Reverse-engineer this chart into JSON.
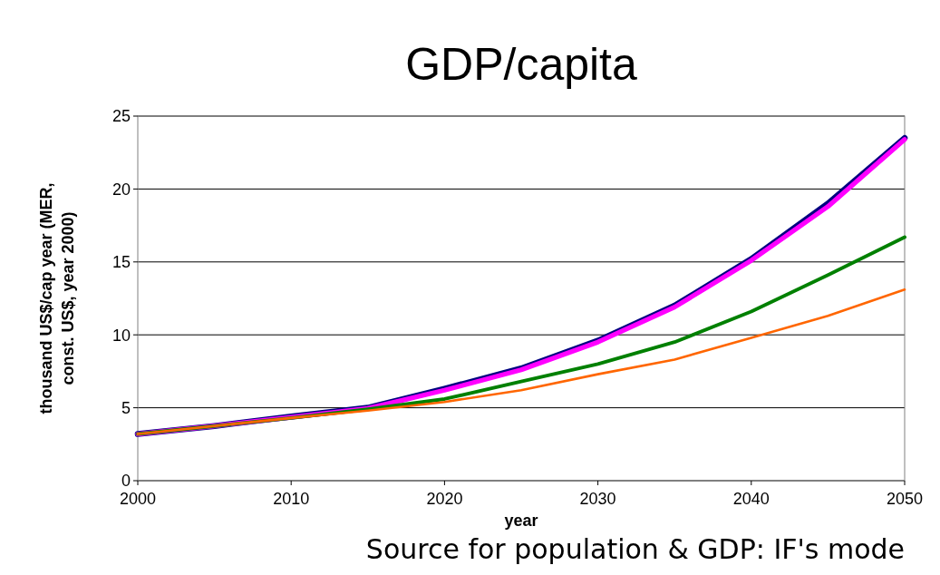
{
  "chart_data": {
    "type": "line",
    "title": "GDP/capita",
    "xlabel": "year",
    "ylabel": "thousand US$/cap year (MER, const. US$, year 2000)",
    "x": [
      2000,
      2005,
      2010,
      2015,
      2020,
      2025,
      2030,
      2035,
      2040,
      2045,
      2050
    ],
    "series": [
      {
        "color": "#000080",
        "values": [
          3.2,
          3.75,
          4.4,
          5.0,
          6.3,
          7.7,
          9.6,
          12.0,
          15.2,
          19.0,
          23.5
        ]
      },
      {
        "color": "#ff00ff",
        "values": [
          3.2,
          3.75,
          4.35,
          4.95,
          6.2,
          7.6,
          9.5,
          11.9,
          15.1,
          18.8,
          23.4
        ]
      },
      {
        "color": "#008000",
        "values": [
          3.2,
          3.75,
          4.3,
          4.9,
          5.6,
          6.8,
          8.0,
          9.5,
          11.6,
          14.1,
          16.7
        ]
      },
      {
        "color": "#ff6600",
        "values": [
          3.2,
          3.75,
          4.3,
          4.8,
          5.4,
          6.2,
          7.3,
          8.3,
          9.8,
          11.3,
          13.1
        ]
      }
    ],
    "xlim": [
      2000,
      2050
    ],
    "xticks": [
      2000,
      2010,
      2020,
      2030,
      2040,
      2050
    ],
    "ylim": [
      0,
      25
    ],
    "yticks": [
      0,
      5,
      10,
      15,
      20,
      25
    ],
    "grid": "y",
    "marker": "none",
    "line_style": "solid",
    "annotations": [
      "Source for population & GDP: IF's mode"
    ]
  }
}
